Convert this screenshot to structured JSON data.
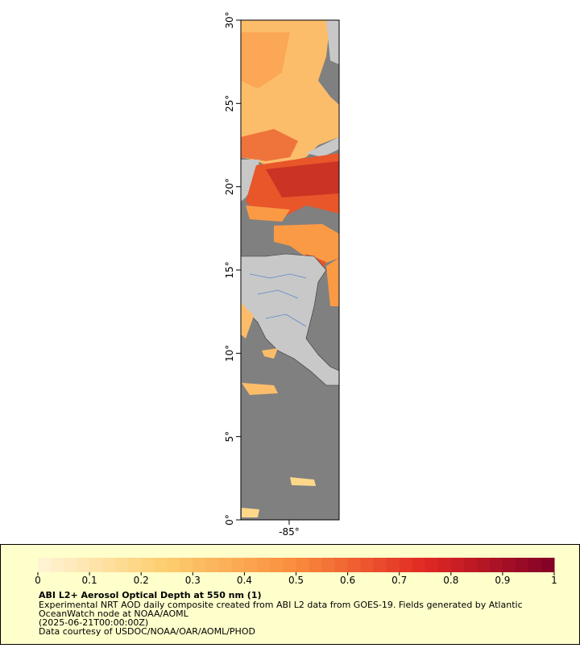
{
  "map": {
    "type": "map",
    "y_ticks": [
      {
        "value": 30,
        "label": "30°"
      },
      {
        "value": 25,
        "label": "25°"
      },
      {
        "value": 20,
        "label": "20°"
      },
      {
        "value": 15,
        "label": "15°"
      },
      {
        "value": 10,
        "label": "10°"
      },
      {
        "value": 5,
        "label": "5°"
      },
      {
        "value": 0,
        "label": "0°"
      }
    ],
    "x_ticks": [
      {
        "value": -85,
        "label": "-85°"
      }
    ],
    "ylim": [
      0,
      30
    ],
    "xlim": [
      -87.9,
      -82.0
    ],
    "colorbar": {
      "lim": [
        0,
        1
      ],
      "ticks": [
        0,
        0.1,
        0.2,
        0.3,
        0.4,
        0.5,
        0.6,
        0.7,
        0.8,
        0.9,
        1
      ]
    },
    "legend": {
      "title": "ABI L2+ Aerosol Optical Depth at 550 nm (1)",
      "lines": [
        "Experimental NRT AOD daily composite created from ABI L2 data from GOES-19. Fields generated by Atlantic",
        "OceanWatch node at NOAA/AOML",
        "(2025-06-21T00:00:00Z)",
        "Data courtesy of USDOC/NOAA/OAR/AOML/PHOD"
      ]
    }
  }
}
